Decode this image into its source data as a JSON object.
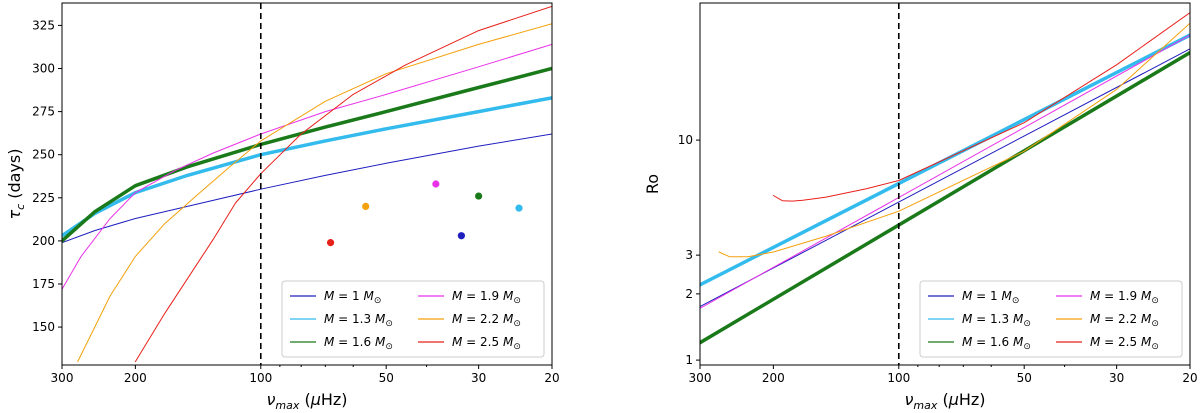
{
  "chart_data": [
    {
      "type": "line",
      "x_scale": "log-reversed",
      "xlim": [
        300,
        20
      ],
      "ylim": [
        128,
        338
      ],
      "xlabel": "ν_max (μHz)",
      "ylabel": "τ_c (days)",
      "xticks": [
        300,
        200,
        100,
        50,
        30,
        20
      ],
      "xtick_labels": [
        "300",
        "200",
        "100",
        "50",
        "30",
        "20"
      ],
      "yticks": [
        150,
        175,
        200,
        225,
        250,
        275,
        300,
        325
      ],
      "ytick_labels": [
        "150",
        "175",
        "200",
        "225",
        "250",
        "275",
        "300",
        "325"
      ],
      "vline": 100,
      "series": [
        {
          "name": "M = 1 M☉",
          "color": "#1f1fbf",
          "width": 1,
          "x": [
            300,
            250,
            200,
            150,
            100,
            70,
            50,
            30,
            20
          ],
          "y": [
            199,
            206,
            213,
            220,
            230,
            238,
            245,
            255,
            262
          ]
        },
        {
          "name": "M = 1.3 M☉",
          "color": "#33bbee",
          "width": 3.5,
          "x": [
            300,
            250,
            200,
            150,
            100,
            70,
            50,
            30,
            20
          ],
          "y": [
            203,
            216,
            228,
            238,
            250,
            258,
            265,
            275,
            283
          ]
        },
        {
          "name": "M = 1.6 M☉",
          "color": "#1a7a1a",
          "width": 3.5,
          "x": [
            300,
            250,
            200,
            150,
            100,
            70,
            50,
            30,
            20
          ],
          "y": [
            200,
            217,
            232,
            243,
            256,
            266,
            275,
            289,
            300
          ]
        },
        {
          "name": "M = 1.9 M☉",
          "color": "#e832e8",
          "width": 1,
          "x": [
            300,
            270,
            230,
            200,
            160,
            130,
            100,
            70,
            50,
            30,
            20
          ],
          "y": [
            172,
            191,
            213,
            228,
            241,
            251,
            262,
            275,
            285,
            301,
            314
          ]
        },
        {
          "name": "M = 2.2 M☉",
          "color": "#f4a10c",
          "width": 1,
          "x": [
            275,
            230,
            200,
            170,
            140,
            120,
            100,
            70,
            50,
            30,
            20
          ],
          "y": [
            130,
            168,
            191,
            210,
            228,
            242,
            258,
            281,
            297,
            314,
            326
          ]
        },
        {
          "name": "M = 2.5 M☉",
          "color": "#e8201a",
          "width": 1,
          "x": [
            200,
            170,
            150,
            130,
            115,
            100,
            80,
            60,
            45,
            30,
            20
          ],
          "y": [
            130,
            158,
            178,
            201,
            222,
            239,
            262,
            285,
            302,
            322,
            336
          ]
        }
      ],
      "points": [
        {
          "x": 68,
          "y": 199,
          "color": "#e8201a"
        },
        {
          "x": 56,
          "y": 220,
          "color": "#f4a10c"
        },
        {
          "x": 38,
          "y": 233,
          "color": "#e832e8"
        },
        {
          "x": 33,
          "y": 203,
          "color": "#1f1fbf"
        },
        {
          "x": 30,
          "y": 226,
          "color": "#1a7a1a"
        },
        {
          "x": 24,
          "y": 219,
          "color": "#33bbee"
        }
      ],
      "legend_position": "bottom-right"
    },
    {
      "type": "line",
      "x_scale": "log-reversed",
      "y_scale": "log",
      "xlim": [
        300,
        20
      ],
      "ylim": [
        0.95,
        42
      ],
      "xlabel": "ν_max (μHz)",
      "ylabel": "Ro",
      "xticks": [
        300,
        200,
        100,
        50,
        30,
        20
      ],
      "xtick_labels": [
        "300",
        "200",
        "100",
        "50",
        "30",
        "20"
      ],
      "yticks": [
        1,
        2,
        3,
        10
      ],
      "ytick_labels": [
        "1",
        "2",
        "3",
        "10"
      ],
      "vline": 100,
      "series": [
        {
          "name": "M = 1 M☉",
          "color": "#1f1fbf",
          "width": 1,
          "x": [
            300,
            20
          ],
          "y": [
            1.75,
            26
          ]
        },
        {
          "name": "M = 1.3 M☉",
          "color": "#33bbee",
          "width": 3.5,
          "x": [
            300,
            20
          ],
          "y": [
            2.2,
            30
          ]
        },
        {
          "name": "M = 1.6 M☉",
          "color": "#1a7a1a",
          "width": 3.5,
          "x": [
            300,
            20
          ],
          "y": [
            1.2,
            25
          ]
        },
        {
          "name": "M = 1.9 M☉",
          "color": "#e832e8",
          "width": 1,
          "x": [
            300,
            20
          ],
          "y": [
            1.72,
            30
          ]
        },
        {
          "name": "M = 2.2 M☉",
          "color": "#f4a10c",
          "width": 1,
          "x": [
            270,
            255,
            230,
            200,
            150,
            100,
            50,
            30,
            20
          ],
          "y": [
            3.1,
            2.95,
            2.95,
            3.1,
            3.65,
            4.75,
            8.9,
            17,
            34
          ]
        },
        {
          "name": "M = 2.5 M☉",
          "color": "#e8201a",
          "width": 1,
          "x": [
            200,
            190,
            180,
            170,
            150,
            120,
            100,
            50,
            30,
            20
          ],
          "y": [
            5.6,
            5.3,
            5.28,
            5.33,
            5.5,
            6.0,
            6.55,
            12,
            22,
            38
          ]
        }
      ],
      "legend_position": "bottom-right"
    }
  ]
}
